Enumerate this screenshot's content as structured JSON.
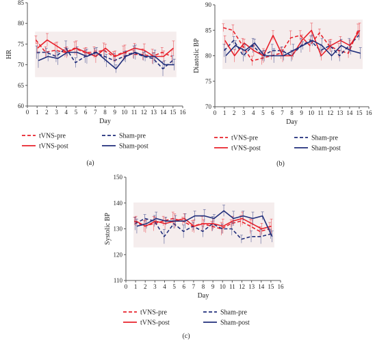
{
  "colors": {
    "tvns": "#e8202a",
    "sham": "#1f2d7a",
    "band": "#f5eded"
  },
  "legend": {
    "tvns_pre": "tVNS-pre",
    "sham_pre": "Sham-pre",
    "tvns_post": "tVNS-post",
    "sham_post": "Sham-post"
  },
  "chart_data": [
    {
      "type": "line",
      "panel_label": "(a)",
      "xlabel": "Day",
      "ylabel": "HR",
      "xlim": [
        0,
        16
      ],
      "ylim": [
        60,
        85
      ],
      "xticks": [
        0,
        1,
        2,
        3,
        4,
        5,
        6,
        7,
        8,
        9,
        10,
        11,
        12,
        13,
        14,
        15,
        16
      ],
      "yticks": [
        60,
        65,
        70,
        75,
        80,
        85
      ],
      "x": [
        1,
        2,
        3,
        4,
        5,
        6,
        7,
        8,
        9,
        10,
        11,
        12,
        13,
        14,
        15
      ],
      "series": [
        {
          "name": "tVNS-pre",
          "style": "dashed",
          "color": "#e8202a",
          "values": [
            76,
            73,
            73.5,
            73,
            74,
            73,
            73,
            73.5,
            72,
            73,
            72.5,
            72.5,
            72,
            73,
            72
          ]
        },
        {
          "name": "Sham-pre",
          "style": "dashed",
          "color": "#1f2d7a",
          "values": [
            73,
            73,
            72,
            74,
            70.5,
            72,
            73,
            72,
            71,
            72,
            73,
            72,
            71.5,
            69,
            71
          ]
        },
        {
          "name": "tVNS-post",
          "style": "solid",
          "color": "#e8202a",
          "values": [
            74,
            76,
            74.5,
            73,
            74,
            73,
            72,
            74,
            72,
            73,
            74,
            73.5,
            72,
            72,
            74
          ]
        },
        {
          "name": "Sham-post",
          "style": "solid",
          "color": "#1f2d7a",
          "values": [
            71,
            72,
            71.5,
            73,
            73,
            72,
            73,
            71,
            69,
            72,
            73,
            72,
            72,
            70,
            70
          ]
        }
      ]
    },
    {
      "type": "line",
      "panel_label": "(b)",
      "xlabel": "Day",
      "ylabel": "Diastolic BP",
      "xlim": [
        0,
        16
      ],
      "ylim": [
        70,
        90
      ],
      "xticks": [
        0,
        1,
        2,
        3,
        4,
        5,
        6,
        7,
        8,
        9,
        10,
        11,
        12,
        13,
        14,
        15,
        16
      ],
      "yticks": [
        70,
        75,
        80,
        85,
        90
      ],
      "x": [
        1,
        2,
        3,
        4,
        5,
        6,
        7,
        8,
        9,
        10,
        11,
        12,
        13,
        14,
        15
      ],
      "series": [
        {
          "name": "tVNS-pre",
          "style": "dashed",
          "color": "#e8202a",
          "values": [
            85.5,
            85,
            82,
            79,
            79.5,
            80,
            80.5,
            83.5,
            84,
            82,
            84.5,
            82,
            81,
            80.5,
            85
          ]
        },
        {
          "name": "Sham-pre",
          "style": "dashed",
          "color": "#1f2d7a",
          "values": [
            81,
            83,
            80,
            82,
            80,
            81,
            81,
            80,
            82,
            83,
            81,
            82,
            80,
            82,
            84
          ]
        },
        {
          "name": "tVNS-post",
          "style": "solid",
          "color": "#e8202a",
          "values": [
            83,
            80,
            82.5,
            81,
            80,
            84,
            80,
            80,
            83,
            85,
            80,
            82,
            83,
            82,
            85
          ]
        },
        {
          "name": "Sham-post",
          "style": "solid",
          "color": "#1f2d7a",
          "values": [
            80,
            82,
            81,
            82.5,
            80,
            80,
            80,
            81,
            82,
            83,
            82,
            80,
            82,
            81,
            80.5
          ]
        }
      ]
    },
    {
      "type": "line",
      "panel_label": "(c)",
      "xlabel": "Day",
      "ylabel": "Systolic BP",
      "xlim": [
        0,
        16
      ],
      "ylim": [
        110,
        150
      ],
      "xticks": [
        0,
        1,
        2,
        3,
        4,
        5,
        6,
        7,
        8,
        9,
        10,
        11,
        12,
        13,
        14,
        15,
        16
      ],
      "yticks": [
        110,
        120,
        130,
        140,
        150
      ],
      "x": [
        1,
        2,
        3,
        4,
        5,
        6,
        7,
        8,
        9,
        10,
        11,
        12,
        13,
        14,
        15
      ],
      "series": [
        {
          "name": "tVNS-pre",
          "style": "dashed",
          "color": "#e8202a",
          "values": [
            133,
            131,
            132,
            133,
            134,
            133,
            131,
            132,
            131,
            130,
            132,
            133,
            131,
            129,
            130
          ]
        },
        {
          "name": "Sham-pre",
          "style": "dashed",
          "color": "#1f2d7a",
          "values": [
            132,
            134,
            133,
            127,
            132,
            129,
            131,
            129,
            132,
            130,
            130,
            126,
            127,
            127,
            128
          ]
        },
        {
          "name": "tVNS-post",
          "style": "solid",
          "color": "#e8202a",
          "values": [
            133,
            131,
            133,
            132,
            133,
            134,
            131,
            132,
            132,
            131,
            133,
            134,
            132,
            130,
            131
          ]
        },
        {
          "name": "Sham-post",
          "style": "solid",
          "color": "#1f2d7a",
          "values": [
            131,
            132,
            134,
            133,
            133,
            133,
            135,
            135,
            134,
            137,
            134,
            135,
            134,
            135,
            127
          ]
        }
      ]
    }
  ]
}
